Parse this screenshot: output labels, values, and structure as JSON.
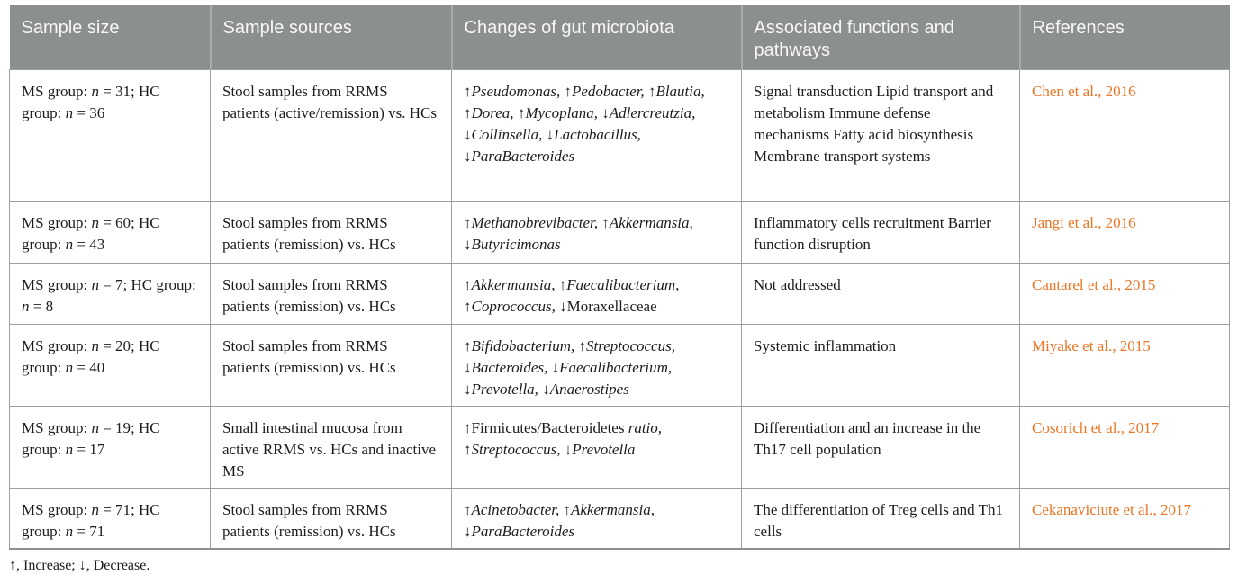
{
  "colors": {
    "header_bg": "#8b8f90",
    "header_text": "#f7f8f8",
    "body_text": "#1c1c1c",
    "reference_link": "#ed7422",
    "grid_line": "#9da0a1"
  },
  "table": {
    "columns": [
      {
        "label": "Sample size"
      },
      {
        "label": "Sample sources"
      },
      {
        "label": "Changes of gut microbiota"
      },
      {
        "label": "Associated functions and pathways"
      },
      {
        "label": "References"
      }
    ],
    "rows": [
      {
        "sample_size": [
          {
            "t": "MS group: "
          },
          {
            "t": "n",
            "i": true
          },
          {
            "t": " = 31; HC group: "
          },
          {
            "t": "n",
            "i": true
          },
          {
            "t": " = 36"
          }
        ],
        "sample_source": "Stool samples from RRMS patients (active/remission) vs. HCs",
        "changes": [
          {
            "t": "↑"
          },
          {
            "t": "Pseudomonas,",
            "i": true
          },
          {
            "t": " ↑"
          },
          {
            "t": "Pedobacter,",
            "i": true
          },
          {
            "t": " ↑"
          },
          {
            "t": "Blautia,",
            "i": true
          },
          {
            "t": " ↑"
          },
          {
            "t": "Dorea,",
            "i": true
          },
          {
            "t": " ↑"
          },
          {
            "t": "Mycoplana,",
            "i": true
          },
          {
            "t": " ↓"
          },
          {
            "t": "Adlercreutzia,",
            "i": true
          },
          {
            "t": " ↓"
          },
          {
            "t": "Collinsella,",
            "i": true
          },
          {
            "t": " ↓"
          },
          {
            "t": "Lactobacillus,",
            "i": true
          },
          {
            "t": " ↓"
          },
          {
            "t": "ParaBacteroides",
            "i": true
          }
        ],
        "functions": "Signal transduction Lipid transport and metabolism Immune defense mechanisms Fatty acid biosynthesis Membrane transport systems",
        "reference": "Chen et al., 2016"
      },
      {
        "sample_size": [
          {
            "t": "MS group: "
          },
          {
            "t": "n",
            "i": true
          },
          {
            "t": " = 60; HC group: "
          },
          {
            "t": "n",
            "i": true
          },
          {
            "t": " = 43"
          }
        ],
        "sample_source": "Stool samples from RRMS patients (remission) vs. HCs",
        "changes": [
          {
            "t": "↑"
          },
          {
            "t": "Methanobrevibacter,",
            "i": true
          },
          {
            "t": " ↑"
          },
          {
            "t": "Akkermansia,",
            "i": true
          },
          {
            "t": " ↓"
          },
          {
            "t": "Butyricimonas",
            "i": true
          }
        ],
        "functions": "Inflammatory cells recruitment Barrier function disruption",
        "reference": "Jangi et al., 2016"
      },
      {
        "sample_size": [
          {
            "t": "MS group: "
          },
          {
            "t": "n",
            "i": true
          },
          {
            "t": " = 7; HC group: "
          },
          {
            "t": "n",
            "i": true
          },
          {
            "t": " = 8"
          }
        ],
        "sample_source": "Stool samples from RRMS patients (remission) vs. HCs",
        "changes": [
          {
            "t": "↑"
          },
          {
            "t": "Akkermansia,",
            "i": true
          },
          {
            "t": " ↑"
          },
          {
            "t": "Faecalibacterium,",
            "i": true
          },
          {
            "t": " ↑"
          },
          {
            "t": "Coprococcus,",
            "i": true
          },
          {
            "t": " ↓Moraxellaceae"
          }
        ],
        "functions": "Not addressed",
        "reference": "Cantarel et al., 2015"
      },
      {
        "sample_size": [
          {
            "t": "MS group: "
          },
          {
            "t": "n",
            "i": true
          },
          {
            "t": " = 20; HC group: "
          },
          {
            "t": "n",
            "i": true
          },
          {
            "t": " = 40"
          }
        ],
        "sample_source": "Stool samples from RRMS patients (remission) vs. HCs",
        "changes": [
          {
            "t": "↑"
          },
          {
            "t": "Bifidobacterium,",
            "i": true
          },
          {
            "t": " ↑"
          },
          {
            "t": "Streptococcus,",
            "i": true
          },
          {
            "t": " ↓"
          },
          {
            "t": "Bacteroides,",
            "i": true
          },
          {
            "t": " ↓"
          },
          {
            "t": "Faecalibacterium,",
            "i": true
          },
          {
            "t": " ↓"
          },
          {
            "t": "Prevotella,",
            "i": true
          },
          {
            "t": " ↓"
          },
          {
            "t": "Anaerostipes",
            "i": true
          }
        ],
        "functions": "Systemic inflammation",
        "reference": "Miyake et al., 2015"
      },
      {
        "sample_size": [
          {
            "t": "MS group: "
          },
          {
            "t": "n",
            "i": true
          },
          {
            "t": " = 19; HC group: "
          },
          {
            "t": "n",
            "i": true
          },
          {
            "t": " = 17"
          }
        ],
        "sample_source": "Small intestinal mucosa from active RRMS vs. HCs and inactive MS",
        "changes": [
          {
            "t": "↑Firmicutes/Bacteroidetes "
          },
          {
            "t": "ratio,",
            "i": true
          },
          {
            "t": " ↑"
          },
          {
            "t": "Streptococcus,",
            "i": true
          },
          {
            "t": " ↓"
          },
          {
            "t": "Prevotella",
            "i": true
          }
        ],
        "functions": "Differentiation and an increase in the Th17 cell population",
        "reference": "Cosorich et al., 2017"
      },
      {
        "sample_size": [
          {
            "t": "MS group: "
          },
          {
            "t": "n",
            "i": true
          },
          {
            "t": " = 71; HC group: "
          },
          {
            "t": "n",
            "i": true
          },
          {
            "t": " = 71"
          }
        ],
        "sample_source": "Stool samples from RRMS patients (remission) vs. HCs",
        "changes": [
          {
            "t": "↑"
          },
          {
            "t": "Acinetobacter,",
            "i": true
          },
          {
            "t": " ↑"
          },
          {
            "t": "Akkermansia,",
            "i": true
          },
          {
            "t": " ↓"
          },
          {
            "t": "ParaBacteroides",
            "i": true
          }
        ],
        "functions": "The differentiation of Treg cells and Th1 cells",
        "reference": "Cekanaviciute et al., 2017"
      }
    ],
    "footnote": "↑, Increase; ↓, Decrease."
  }
}
